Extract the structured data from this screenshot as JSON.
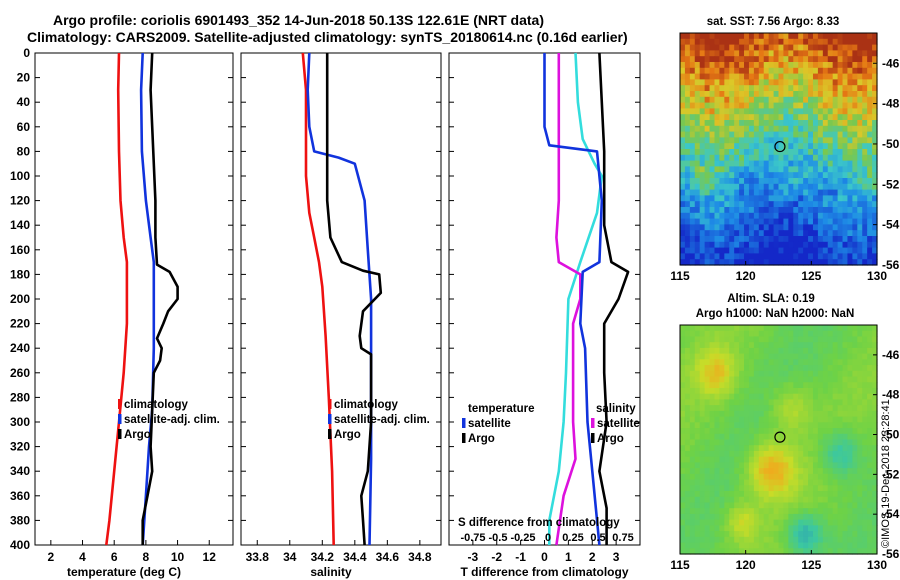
{
  "header": {
    "line1": "Argo profile: coriolis 6901493_352 14-Jun-2018 50.13S 122.61E (NRT data)",
    "line2": "Climatology: CARS2009. Satellite-adjusted climatology: synTS_20180614.nc (0.16d earlier)"
  },
  "depth_ticks": [
    0,
    20,
    40,
    60,
    80,
    100,
    120,
    140,
    160,
    180,
    200,
    220,
    240,
    260,
    280,
    300,
    320,
    340,
    360,
    380,
    400
  ],
  "colors": {
    "climatology": "#ee1111",
    "satellite": "#1133dd",
    "argo": "#000000",
    "t_diff": "#33dddd",
    "s_diff": "#dd11dd"
  },
  "chart_data": [
    {
      "type": "line",
      "name": "temperature",
      "xlabel": "temperature (deg C)",
      "xlim": [
        1,
        13.5
      ],
      "ylim": [
        0,
        400
      ],
      "xticks": [
        2,
        4,
        6,
        8,
        10,
        12
      ],
      "legend": [
        "climatology",
        "satellite-adj. clim.",
        "Argo"
      ],
      "series": [
        {
          "name": "climatology",
          "color_key": "climatology",
          "points": [
            [
              6.3,
              0
            ],
            [
              6.25,
              30
            ],
            [
              6.3,
              80
            ],
            [
              6.4,
              120
            ],
            [
              6.6,
              150
            ],
            [
              6.8,
              170
            ],
            [
              6.8,
              220
            ],
            [
              6.6,
              260
            ],
            [
              6.3,
              300
            ],
            [
              6.0,
              340
            ],
            [
              5.7,
              380
            ],
            [
              5.5,
              400
            ]
          ]
        },
        {
          "name": "satellite-adj. clim.",
          "color_key": "satellite",
          "points": [
            [
              7.8,
              0
            ],
            [
              7.7,
              30
            ],
            [
              7.75,
              80
            ],
            [
              8.0,
              120
            ],
            [
              8.3,
              150
            ],
            [
              8.5,
              170
            ],
            [
              8.5,
              240
            ],
            [
              8.4,
              290
            ],
            [
              8.2,
              320
            ],
            [
              8.0,
              360
            ],
            [
              7.8,
              400
            ]
          ]
        },
        {
          "name": "Argo",
          "color_key": "argo",
          "points": [
            [
              8.4,
              0
            ],
            [
              8.3,
              30
            ],
            [
              8.4,
              60
            ],
            [
              8.5,
              90
            ],
            [
              8.6,
              120
            ],
            [
              8.6,
              150
            ],
            [
              8.7,
              172
            ],
            [
              9.5,
              178
            ],
            [
              10.0,
              190
            ],
            [
              10.0,
              200
            ],
            [
              9.4,
              210
            ],
            [
              9.1,
              220
            ],
            [
              8.7,
              232
            ],
            [
              9.0,
              240
            ],
            [
              8.9,
              250
            ],
            [
              8.5,
              260
            ],
            [
              8.4,
              290
            ],
            [
              8.3,
              320
            ],
            [
              8.4,
              340
            ],
            [
              8.1,
              360
            ],
            [
              7.8,
              380
            ],
            [
              7.8,
              400
            ]
          ]
        }
      ]
    },
    {
      "type": "line",
      "name": "salinity",
      "xlabel": "salinity",
      "xlim": [
        33.7,
        34.93
      ],
      "ylim": [
        0,
        400
      ],
      "xticks": [
        33.8,
        34,
        34.2,
        34.4,
        34.6,
        34.8
      ],
      "legend": [
        "climatology",
        "satellite-adj. clim.",
        "Argo"
      ],
      "series": [
        {
          "name": "climatology",
          "color_key": "climatology",
          "points": [
            [
              34.08,
              0
            ],
            [
              34.1,
              30
            ],
            [
              34.1,
              60
            ],
            [
              34.1,
              100
            ],
            [
              34.12,
              130
            ],
            [
              34.15,
              150
            ],
            [
              34.18,
              170
            ],
            [
              34.2,
              190
            ],
            [
              34.22,
              230
            ],
            [
              34.24,
              280
            ],
            [
              34.26,
              340
            ],
            [
              34.27,
              400
            ]
          ]
        },
        {
          "name": "satellite-adj. clim.",
          "color_key": "satellite",
          "points": [
            [
              34.12,
              0
            ],
            [
              34.11,
              30
            ],
            [
              34.12,
              60
            ],
            [
              34.15,
              80
            ],
            [
              34.3,
              85
            ],
            [
              34.4,
              90
            ],
            [
              34.46,
              120
            ],
            [
              34.48,
              160
            ],
            [
              34.5,
              200
            ],
            [
              34.5,
              260
            ],
            [
              34.5,
              330
            ],
            [
              34.49,
              400
            ]
          ]
        },
        {
          "name": "Argo",
          "color_key": "argo",
          "points": [
            [
              34.23,
              0
            ],
            [
              34.23,
              40
            ],
            [
              34.23,
              80
            ],
            [
              34.23,
              120
            ],
            [
              34.25,
              150
            ],
            [
              34.32,
              170
            ],
            [
              34.45,
              177
            ],
            [
              34.55,
              180
            ],
            [
              34.56,
              195
            ],
            [
              34.45,
              210
            ],
            [
              34.43,
              230
            ],
            [
              34.44,
              240
            ],
            [
              34.5,
              245
            ],
            [
              34.5,
              300
            ],
            [
              34.48,
              340
            ],
            [
              34.44,
              360
            ],
            [
              34.45,
              380
            ],
            [
              34.46,
              400
            ]
          ]
        }
      ]
    },
    {
      "type": "line",
      "name": "difference",
      "xlabel": "T difference from climatology",
      "xlim": [
        -4,
        4
      ],
      "ylim": [
        0,
        400
      ],
      "xticks": [
        -3,
        -2,
        -1,
        0,
        1,
        2,
        3
      ],
      "s_axis_label": "S difference from climatology",
      "s_ticks": [
        "-0.75",
        "-0.5",
        "-0.25",
        "0",
        "0.25",
        "0.5",
        "0.75"
      ],
      "legend_left_title": "temperature",
      "legend_right_title": "salinity",
      "legend_items": [
        "satellite",
        "Argo"
      ],
      "series": [
        {
          "name": "T satellite",
          "color_key": "t_diff",
          "points": [
            [
              1.3,
              0
            ],
            [
              1.4,
              40
            ],
            [
              1.6,
              70
            ],
            [
              2.1,
              90
            ],
            [
              2.4,
              100
            ],
            [
              2.2,
              130
            ],
            [
              1.5,
              170
            ],
            [
              1.0,
              200
            ],
            [
              0.9,
              260
            ],
            [
              0.8,
              300
            ],
            [
              0.6,
              340
            ],
            [
              0.2,
              380
            ],
            [
              0.2,
              400
            ]
          ]
        },
        {
          "name": "S satellite",
          "color_key": "s_diff",
          "points": [
            [
              0.6,
              0
            ],
            [
              0.6,
              60
            ],
            [
              0.6,
              120
            ],
            [
              0.5,
              150
            ],
            [
              0.6,
              170
            ],
            [
              1.5,
              180
            ],
            [
              1.5,
              200
            ],
            [
              1.2,
              220
            ],
            [
              1.2,
              300
            ],
            [
              1.3,
              330
            ],
            [
              0.8,
              360
            ],
            [
              0.5,
              400
            ]
          ]
        },
        {
          "name": "satellite (blue)",
          "color_key": "satellite",
          "points": [
            [
              0,
              0
            ],
            [
              0,
              60
            ],
            [
              0.2,
              75
            ],
            [
              2.2,
              80
            ],
            [
              2.4,
              120
            ],
            [
              2.3,
              170
            ],
            [
              1.6,
              178
            ],
            [
              1.5,
              220
            ],
            [
              1.7,
              240
            ],
            [
              1.8,
              300
            ],
            [
              2.0,
              340
            ],
            [
              2.3,
              400
            ]
          ]
        },
        {
          "name": "Argo",
          "color_key": "argo",
          "points": [
            [
              2.3,
              0
            ],
            [
              2.4,
              40
            ],
            [
              2.5,
              80
            ],
            [
              2.5,
              140
            ],
            [
              2.8,
              170
            ],
            [
              3.5,
              178
            ],
            [
              3.1,
              200
            ],
            [
              2.5,
              220
            ],
            [
              2.5,
              260
            ],
            [
              2.6,
              300
            ],
            [
              2.3,
              340
            ],
            [
              2.6,
              370
            ],
            [
              2.6,
              400
            ]
          ]
        }
      ]
    },
    {
      "type": "heatmap",
      "name": "sst-map",
      "title": "sat. SST: 7.56 Argo: 8.33",
      "xticks": [
        "115",
        "120",
        "125",
        "130"
      ],
      "yticks": [
        "-46",
        "-48",
        "-50",
        "-52",
        "-54",
        "-56"
      ],
      "xlim": [
        115,
        130
      ],
      "ylim": [
        -56,
        -44.5
      ],
      "marker": [
        122.61,
        -50.13
      ]
    },
    {
      "type": "heatmap",
      "name": "sla-map",
      "title": "Altim. SLA: 0.19",
      "subtitle": "Argo h1000: NaN h2000: NaN",
      "xticks": [
        "115",
        "120",
        "125",
        "130"
      ],
      "yticks": [
        "-46",
        "-48",
        "-50",
        "-52",
        "-54",
        "-56"
      ],
      "xlim": [
        115,
        130
      ],
      "ylim": [
        -56,
        -44.5
      ],
      "marker": [
        122.61,
        -50.13
      ]
    }
  ],
  "credit": "©IMOS 19-Dec-2018 23:28:41"
}
